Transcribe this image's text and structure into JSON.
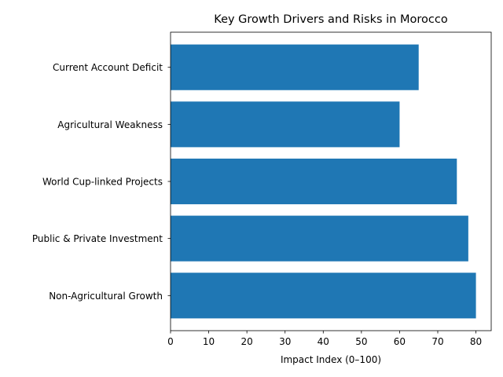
{
  "chart_data": {
    "type": "bar",
    "orientation": "horizontal",
    "title": "Key Growth Drivers and Risks in Morocco",
    "xlabel": "Impact Index (0–100)",
    "ylabel": "",
    "categories": [
      "Non-Agricultural Growth",
      "Public & Private Investment",
      "World Cup-linked Projects",
      "Agricultural Weakness",
      "Current Account Deficit"
    ],
    "values": [
      80,
      78,
      75,
      60,
      65
    ],
    "xlim": [
      0,
      84
    ],
    "xticks": [
      0,
      10,
      20,
      30,
      40,
      50,
      60,
      70,
      80
    ],
    "bar_color": "#1f77b4",
    "grid": false,
    "legend": "none"
  }
}
